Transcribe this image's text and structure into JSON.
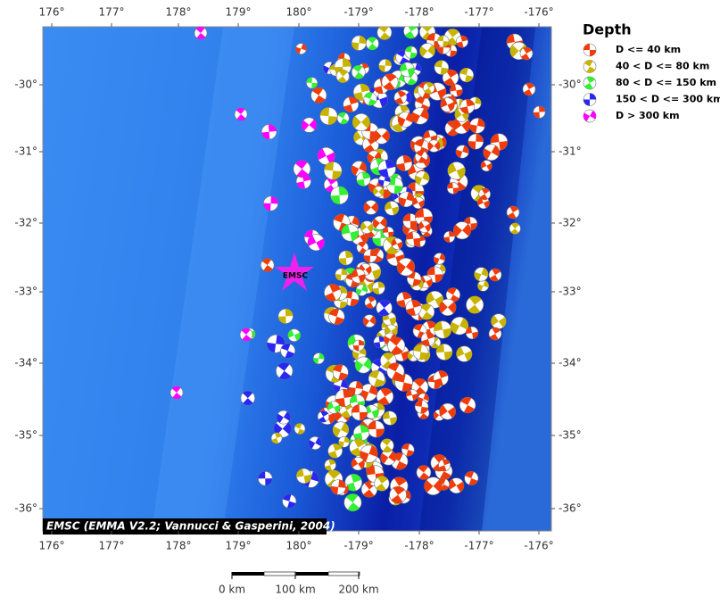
{
  "map": {
    "lon_labels": [
      "176°",
      "177°",
      "178°",
      "179°",
      "180°",
      "-179°",
      "-178°",
      "-177°",
      "-176°"
    ],
    "lat_labels": [
      "-30°",
      "-31°",
      "-32°",
      "-33°",
      "-34°",
      "-35°",
      "-36°"
    ],
    "marker": "EMSC",
    "credit": "EMSC (EMMA V2.2; Vannucci & Gasperini, 2004)",
    "legend": {
      "title": "Depth",
      "items": [
        {
          "label": "D <= 40 km",
          "color": "#f03c0a"
        },
        {
          "label": "40 < D <= 80 km",
          "color": "#c8b400"
        },
        {
          "label": "80 < D <= 150 km",
          "color": "#32f032"
        },
        {
          "label": "150 < D <= 300 km",
          "color": "#2828f0"
        },
        {
          "label": "D > 300 km",
          "color": "#ff00ff"
        }
      ]
    },
    "scale_labels": [
      "0 km",
      "100 km",
      "200 km"
    ]
  }
}
